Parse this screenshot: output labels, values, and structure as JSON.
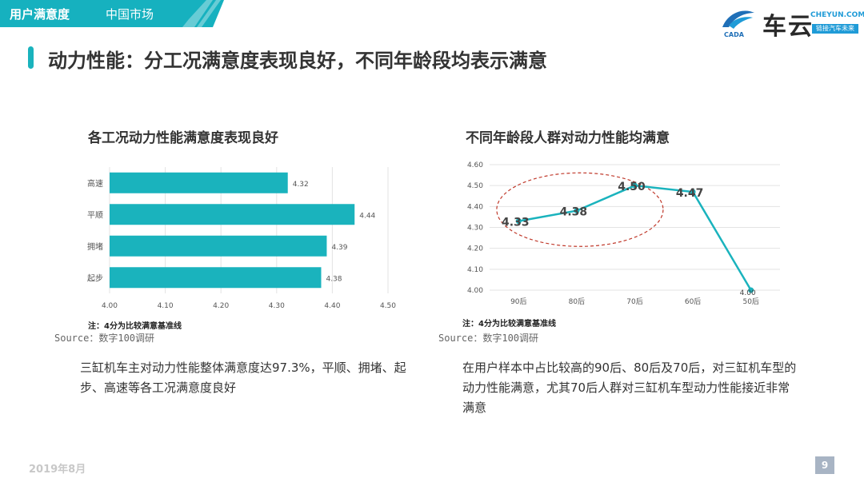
{
  "header": {
    "section_label": "用户满意度",
    "subsection_label": "中国市场"
  },
  "logo": {
    "brand_cn": "车云",
    "url": "CHEYUN.COM",
    "tagline": "链接汽车未来",
    "mark_text": "CADA"
  },
  "page_title": "动力性能：分工况满意度表现良好，不同年龄段均表示满意",
  "left": {
    "chart_title": "各工况动力性能满意度表现良好",
    "note": "注：4分为比较满意基准线",
    "source": "Source：数字100调研",
    "description": "三缸机车主对动力性能整体满意度达97.3%，平顺、拥堵、起步、高速等各工况满意度良好"
  },
  "right": {
    "chart_title": "不同年龄段人群对动力性能均满意",
    "note": "注：4分为比较满意基准线",
    "source": "Source：数字100调研",
    "description": "在用户样本中占比较高的90后、80后及70后，对三缸机车型的动力性能满意，尤其70后人群对三缸机车型动力性能接近非常满意"
  },
  "chart_data": [
    {
      "type": "bar",
      "orientation": "horizontal",
      "title": "各工况动力性能满意度表现良好",
      "categories": [
        "高速",
        "平顺",
        "拥堵",
        "起步"
      ],
      "values": [
        4.32,
        4.44,
        4.39,
        4.38
      ],
      "value_labels": [
        "4.32",
        "4.44",
        "4.39",
        "4.38"
      ],
      "xlim": [
        4.0,
        4.5
      ],
      "x_ticks": [
        "4.00",
        "4.10",
        "4.20",
        "4.30",
        "4.40",
        "4.50"
      ],
      "grid": true,
      "color": "#1ab3bd"
    },
    {
      "type": "line",
      "title": "不同年龄段人群对动力性能均满意",
      "categories": [
        "90后",
        "80后",
        "70后",
        "60后",
        "50后"
      ],
      "values": [
        4.33,
        4.38,
        4.5,
        4.47,
        4.0
      ],
      "value_labels": [
        "4.33",
        "4.38",
        "4.50",
        "4.47",
        "4.00"
      ],
      "ylim": [
        4.0,
        4.6
      ],
      "y_ticks": [
        "4.00",
        "4.10",
        "4.20",
        "4.30",
        "4.40",
        "4.50",
        "4.60"
      ],
      "grid": true,
      "color": "#1ab3bd",
      "annotation": "dashed red ellipse around 90后–70后 points"
    }
  ],
  "footer": {
    "date": "2019年8月",
    "page_number": "9"
  }
}
